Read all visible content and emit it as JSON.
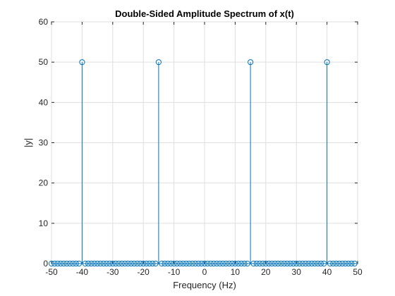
{
  "chart_data": {
    "type": "stem",
    "title": "Double-Sided Amplitude Spectrum of x(t)",
    "xlabel": "Frequency (Hz)",
    "ylabel": "|y|",
    "xlim": [
      -50,
      50
    ],
    "ylim": [
      0,
      60
    ],
    "xticks": [
      -50,
      -40,
      -30,
      -20,
      -10,
      0,
      10,
      20,
      30,
      40,
      50
    ],
    "yticks": [
      0,
      10,
      20,
      30,
      40,
      50,
      60
    ],
    "grid": true,
    "color": "#0072bd",
    "marker": "circle",
    "x": [
      -50,
      -49,
      -48,
      -47,
      -46,
      -45,
      -44,
      -43,
      -42,
      -41,
      -40,
      -39,
      -38,
      -37,
      -36,
      -35,
      -34,
      -33,
      -32,
      -31,
      -30,
      -29,
      -28,
      -27,
      -26,
      -25,
      -24,
      -23,
      -22,
      -21,
      -20,
      -19,
      -18,
      -17,
      -16,
      -15,
      -14,
      -13,
      -12,
      -11,
      -10,
      -9,
      -8,
      -7,
      -6,
      -5,
      -4,
      -3,
      -2,
      -1,
      0,
      1,
      2,
      3,
      4,
      5,
      6,
      7,
      8,
      9,
      10,
      11,
      12,
      13,
      14,
      15,
      16,
      17,
      18,
      19,
      20,
      21,
      22,
      23,
      24,
      25,
      26,
      27,
      28,
      29,
      30,
      31,
      32,
      33,
      34,
      35,
      36,
      37,
      38,
      39,
      40,
      41,
      42,
      43,
      44,
      45,
      46,
      47,
      48,
      49
    ],
    "y": [
      0,
      0,
      0,
      0,
      0,
      0,
      0,
      0,
      0,
      0,
      50,
      0,
      0,
      0,
      0,
      0,
      0,
      0,
      0,
      0,
      0,
      0,
      0,
      0,
      0,
      0,
      0,
      0,
      0,
      0,
      0,
      0,
      0,
      0,
      0,
      50,
      0,
      0,
      0,
      0,
      0,
      0,
      0,
      0,
      0,
      0,
      0,
      0,
      0,
      0,
      0,
      0,
      0,
      0,
      0,
      0,
      0,
      0,
      0,
      0,
      0,
      0,
      0,
      0,
      0,
      50,
      0,
      0,
      0,
      0,
      0,
      0,
      0,
      0,
      0,
      0,
      0,
      0,
      0,
      0,
      0,
      0,
      0,
      0,
      0,
      0,
      0,
      0,
      0,
      0,
      50,
      0,
      0,
      0,
      0,
      0,
      0,
      0,
      0,
      0
    ]
  }
}
